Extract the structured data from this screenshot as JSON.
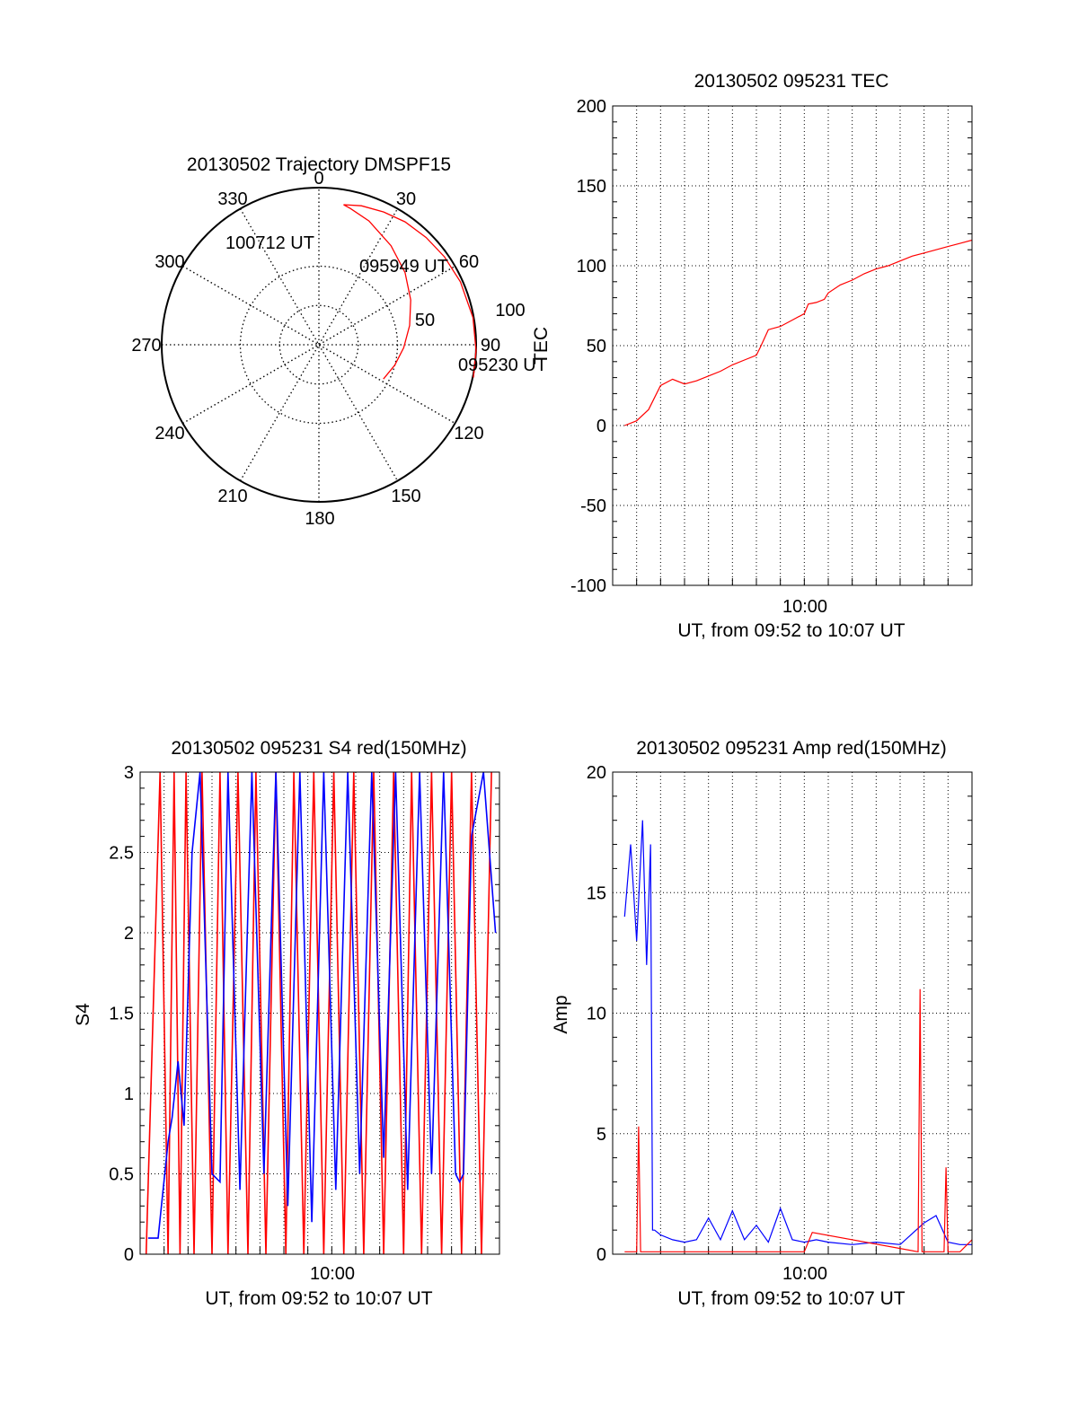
{
  "colors": {
    "series_red": "#ff0000",
    "series_blue": "#0000ff",
    "axis": "#000000",
    "grid": "#000000"
  },
  "chart_data": [
    {
      "type": "polar",
      "title": "20130502 Trajectory DMSPF15",
      "azimuth_labels": [
        "0",
        "30",
        "60",
        "90",
        "120",
        "150",
        "180",
        "210",
        "240",
        "270",
        "300",
        "330"
      ],
      "radial_labels": [
        "50",
        "100"
      ],
      "grid": true,
      "series": [
        {
          "color": "#ff0000",
          "points": [
            [
              118,
              93
            ],
            [
              105,
              100
            ],
            [
              92,
              108
            ],
            [
              78,
              118
            ],
            [
              64,
              130
            ],
            [
              50,
              143
            ],
            [
              36,
              156
            ],
            [
              22,
              170
            ],
            [
              13,
              178
            ],
            [
              10,
              181
            ],
            [
              17,
              185
            ],
            [
              26,
              188
            ],
            [
              35,
              191
            ],
            [
              45,
              193
            ],
            [
              55,
              195
            ],
            [
              66,
              197
            ],
            [
              80,
              199
            ],
            [
              92,
              200
            ],
            [
              102,
              201
            ]
          ]
        }
      ],
      "annotations": [
        "100712 UT",
        "095949 UT",
        "095230 UT"
      ]
    },
    {
      "type": "line",
      "title": "20130502 095231 TEC",
      "xlabel": "UT, from 09:52 to 10:07 UT",
      "ylabel": "TEC",
      "xlim": [
        "09:52",
        "10:07"
      ],
      "ylim": [
        -100,
        200
      ],
      "yticks": [
        "-100",
        "-50",
        "0",
        "50",
        "100",
        "150",
        "200"
      ],
      "xticks": [
        "10:00"
      ],
      "grid": true,
      "series": [
        {
          "color": "#ff0000",
          "x": [
            "09:52:30",
            "09:53:00",
            "09:53:30",
            "09:54:00",
            "09:54:30",
            "09:55:00",
            "09:55:30",
            "09:56:00",
            "09:56:30",
            "09:57:00",
            "09:57:30",
            "09:58:00",
            "09:58:10",
            "09:58:30",
            "09:59:00",
            "09:59:30",
            "10:00:00",
            "10:00:10",
            "10:00:30",
            "10:00:50",
            "10:01:00",
            "10:01:30",
            "10:02:00",
            "10:02:30",
            "10:03:00",
            "10:03:30",
            "10:04:00",
            "10:04:30",
            "10:05:00",
            "10:05:30",
            "10:06:00",
            "10:06:30",
            "10:07:00"
          ],
          "values": [
            0,
            3,
            10,
            25,
            29,
            26,
            28,
            31,
            34,
            38,
            41,
            44,
            49,
            60,
            62,
            66,
            70,
            76,
            77,
            79,
            83,
            88,
            91,
            95,
            98,
            100,
            103,
            106,
            108,
            110,
            112,
            114,
            116
          ]
        }
      ]
    },
    {
      "type": "line",
      "title": "20130502 095231 S4 red(150MHz)",
      "xlabel": "UT, from 09:52 to 10:07 UT",
      "ylabel": "S4",
      "xlim": [
        "09:52",
        "10:07"
      ],
      "ylim": [
        0,
        3
      ],
      "yticks": [
        "0",
        "0.5",
        "1",
        "1.5",
        "2",
        "2.5",
        "3"
      ],
      "xticks": [
        "10:00"
      ],
      "grid": true,
      "series": [
        {
          "color": "#ff0000",
          "x": [
            "09:52:15",
            "09:52:50",
            "09:53:10",
            "09:53:25",
            "09:53:40",
            "09:53:55",
            "09:54:15",
            "09:54:35",
            "09:55:00",
            "09:55:20",
            "09:55:40",
            "09:56:05",
            "09:56:30",
            "09:56:50",
            "09:57:15",
            "09:57:40",
            "09:58:05",
            "09:58:25",
            "09:58:50",
            "09:59:15",
            "09:59:40",
            "10:00:05",
            "10:00:30",
            "10:00:55",
            "10:01:20",
            "10:01:45",
            "10:02:10",
            "10:02:35",
            "10:03:00",
            "10:03:20",
            "10:03:45",
            "10:04:10",
            "10:04:35",
            "10:05:00",
            "10:05:25",
            "10:05:50",
            "10:06:15",
            "10:06:40"
          ],
          "values": [
            0,
            3,
            0,
            3,
            0,
            3,
            0,
            3,
            0,
            3,
            0,
            3,
            0,
            3,
            0,
            3,
            0,
            3,
            0,
            3,
            0,
            3,
            0,
            3,
            0,
            3,
            0,
            3,
            0,
            3,
            0,
            3,
            0,
            3,
            0,
            3,
            0,
            3
          ]
        },
        {
          "color": "#0000ff",
          "x": [
            "09:52:20",
            "09:52:45",
            "09:53:10",
            "09:53:20",
            "09:53:35",
            "09:53:50",
            "09:54:10",
            "09:54:30",
            "09:55:00",
            "09:55:20",
            "09:55:40",
            "09:56:10",
            "09:56:40",
            "09:57:10",
            "09:57:40",
            "09:58:10",
            "09:58:40",
            "09:59:10",
            "09:59:40",
            "10:00:10",
            "10:00:40",
            "10:01:10",
            "10:01:40",
            "10:02:10",
            "10:02:40",
            "10:03:10",
            "10:03:40",
            "10:04:10",
            "10:04:40",
            "10:05:10",
            "10:05:20",
            "10:05:30",
            "10:05:50",
            "10:06:20",
            "10:06:50"
          ],
          "values": [
            0.1,
            0.1,
            0.7,
            0.85,
            1.2,
            0.8,
            2.5,
            3,
            0.5,
            0.45,
            3,
            0.4,
            3,
            0.5,
            3,
            0.3,
            3,
            0.2,
            3,
            0.4,
            3,
            0.5,
            3,
            0.6,
            3,
            0.4,
            3,
            0.5,
            3,
            0.5,
            0.45,
            0.5,
            2.6,
            3,
            2.0
          ]
        }
      ]
    },
    {
      "type": "line",
      "title": "20130502 095231 Amp red(150MHz)",
      "xlabel": "UT, from 09:52 to 10:07 UT",
      "ylabel": "Amp",
      "xlim": [
        "09:52",
        "10:07"
      ],
      "ylim": [
        0,
        20
      ],
      "yticks": [
        "0",
        "5",
        "10",
        "15",
        "20"
      ],
      "xticks": [
        "10:00"
      ],
      "grid": true,
      "series": [
        {
          "color": "#0000ff",
          "x": [
            "09:52:30",
            "09:52:45",
            "09:53:00",
            "09:53:15",
            "09:53:25",
            "09:53:35",
            "09:53:40",
            "09:53:45",
            "09:54:00",
            "09:54:30",
            "09:55:00",
            "09:55:30",
            "09:56:00",
            "09:56:30",
            "09:57:00",
            "09:57:30",
            "09:58:00",
            "09:58:30",
            "09:59:00",
            "09:59:30",
            "10:00:00",
            "10:00:30",
            "10:01:00",
            "10:02:00",
            "10:03:00",
            "10:04:00",
            "10:05:00",
            "10:05:30",
            "10:06:00",
            "10:06:30",
            "10:07:00"
          ],
          "values": [
            14,
            17,
            13,
            18,
            12,
            17,
            1,
            1,
            0.8,
            0.6,
            0.5,
            0.6,
            1.5,
            0.6,
            1.8,
            0.6,
            1.2,
            0.5,
            1.9,
            0.6,
            0.5,
            0.6,
            0.5,
            0.4,
            0.5,
            0.4,
            1.3,
            1.6,
            0.5,
            0.4,
            0.4
          ]
        },
        {
          "color": "#ff0000",
          "x": [
            "09:52:30",
            "09:53:00",
            "09:53:05",
            "09:53:10",
            "09:53:30",
            "09:55:00",
            "10:00:00",
            "10:00:20",
            "10:04:45",
            "10:04:50",
            "10:04:55",
            "10:05:30",
            "10:05:50",
            "10:05:55",
            "10:06:00",
            "10:06:30",
            "10:07:00"
          ],
          "values": [
            0.1,
            0.1,
            5.3,
            0.1,
            0.1,
            0.1,
            0.1,
            0.9,
            0.1,
            11,
            0.1,
            0.1,
            0.1,
            3.6,
            0.1,
            0.1,
            0.6
          ]
        }
      ]
    }
  ]
}
